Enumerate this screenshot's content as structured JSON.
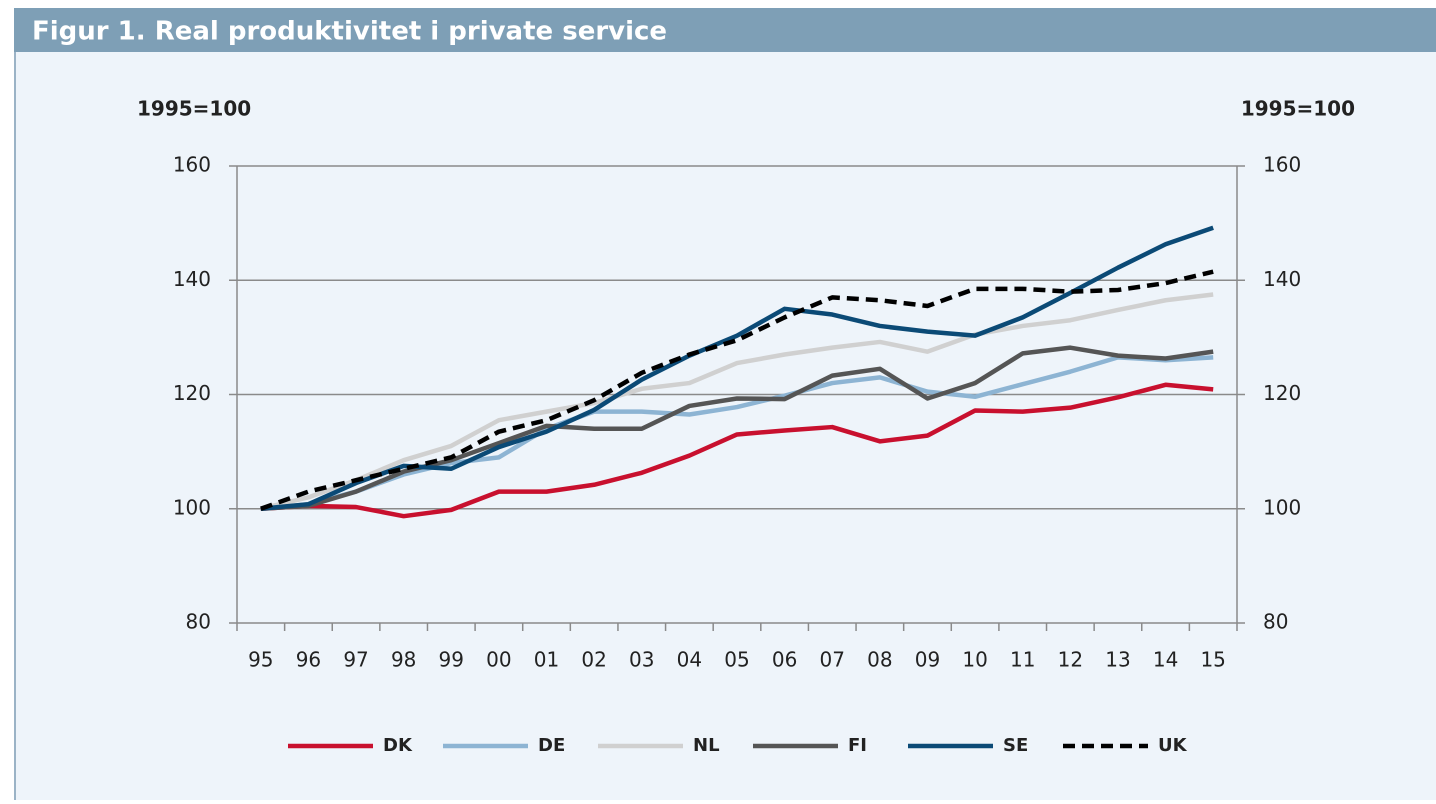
{
  "chart_data": {
    "type": "line",
    "title": "Figur 1. Real produktivitet i private service",
    "y_label": "1995=100",
    "y2_label": "1995=100",
    "categories": [
      "95",
      "96",
      "97",
      "98",
      "99",
      "00",
      "01",
      "02",
      "03",
      "04",
      "05",
      "06",
      "07",
      "08",
      "09",
      "10",
      "11",
      "12",
      "13",
      "14",
      "15"
    ],
    "ylim": [
      80,
      160
    ],
    "yticks": [
      80,
      100,
      120,
      140,
      160
    ],
    "y2lim": [
      80,
      160
    ],
    "y2ticks": [
      80,
      100,
      120,
      140,
      160
    ],
    "grid": true,
    "legend": "bottom",
    "series": [
      {
        "name": "DK",
        "color": "#c8102e",
        "values": [
          100,
          100.5,
          100.3,
          98.7,
          99.8,
          103,
          103,
          104.2,
          106.3,
          109.3,
          113,
          113.7,
          114.3,
          111.8,
          112.8,
          117.2,
          117,
          117.7,
          119.5,
          121.7,
          120.9
        ]
      },
      {
        "name": "DE",
        "color": "#8db4d3",
        "values": [
          100,
          100.8,
          103,
          106,
          108,
          109,
          114,
          117,
          117,
          116.5,
          117.8,
          119.8,
          122,
          123,
          120.5,
          119.6,
          121.8,
          124,
          126.5,
          126,
          126.5
        ]
      },
      {
        "name": "NL",
        "color": "#d0d0d0",
        "values": [
          100,
          102,
          105,
          108.5,
          111,
          115.5,
          117,
          118.5,
          121,
          122,
          125.5,
          127,
          128.2,
          129.2,
          127.5,
          130.5,
          132,
          133,
          134.8,
          136.5,
          137.5
        ]
      },
      {
        "name": "FI",
        "color": "#555555",
        "values": [
          100,
          100.5,
          103,
          106.5,
          108.5,
          111.5,
          114.5,
          114,
          114,
          118,
          119.3,
          119.2,
          123.3,
          124.5,
          119.3,
          122,
          127.2,
          128.2,
          126.8,
          126.3,
          127.5
        ]
      },
      {
        "name": "SE",
        "color": "#0b4a76",
        "values": [
          100,
          100.8,
          104.5,
          107.5,
          107,
          110.8,
          113.5,
          117.3,
          122.6,
          126.8,
          130.3,
          135,
          134,
          132,
          131,
          130.3,
          133.5,
          137.8,
          142.2,
          146.3,
          149.2
        ]
      },
      {
        "name": "UK",
        "color": "#000000",
        "dashed": true,
        "values": [
          100,
          103,
          105,
          107,
          109,
          113.5,
          115.5,
          119,
          123.8,
          127,
          129.5,
          133.5,
          137,
          136.5,
          135.5,
          138.5,
          138.5,
          138,
          138.3,
          139.5,
          141.5
        ]
      }
    ]
  }
}
